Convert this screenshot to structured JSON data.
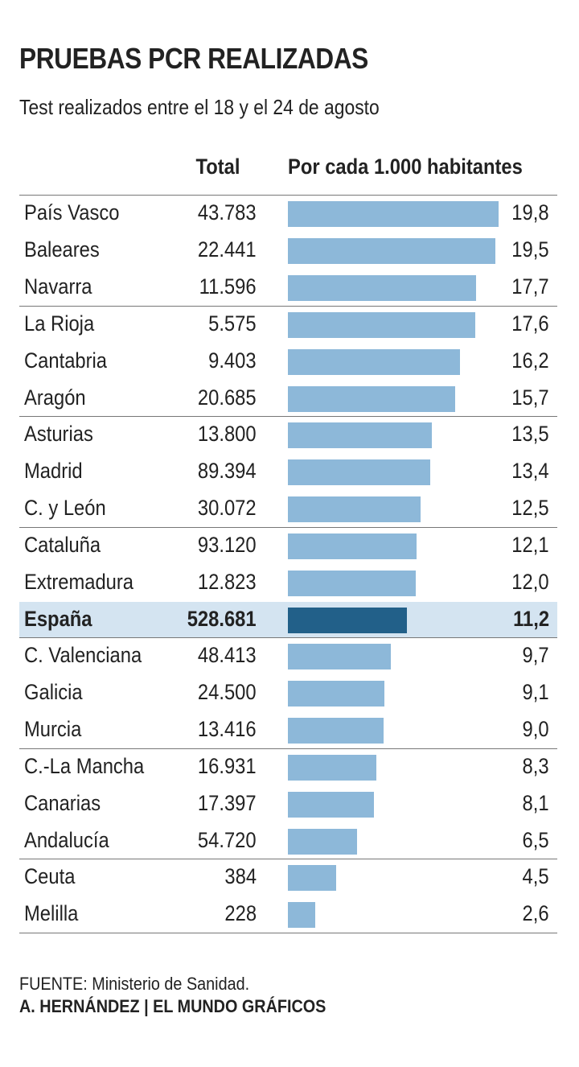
{
  "chart_data": {
    "type": "bar",
    "orientation": "horizontal",
    "title": "PRUEBAS PCR REALIZADAS",
    "subtitle": "Test realizados entre el 18 y el 24 de agosto",
    "columns": {
      "total": "Total",
      "rate": "Por cada 1.000 habitantes"
    },
    "xlim": [
      0,
      19.8
    ],
    "highlight_color": "#226089",
    "bar_color": "#8db8d9",
    "rows": [
      {
        "name": "País Vasco",
        "total": "43.783",
        "rate": 19.8,
        "rate_label": "19,8"
      },
      {
        "name": "Baleares",
        "total": "22.441",
        "rate": 19.5,
        "rate_label": "19,5"
      },
      {
        "name": "Navarra",
        "total": "11.596",
        "rate": 17.7,
        "rate_label": "17,7",
        "separator": true
      },
      {
        "name": "La Rioja",
        "total": "5.575",
        "rate": 17.6,
        "rate_label": "17,6"
      },
      {
        "name": "Cantabria",
        "total": "9.403",
        "rate": 16.2,
        "rate_label": "16,2"
      },
      {
        "name": "Aragón",
        "total": "20.685",
        "rate": 15.7,
        "rate_label": "15,7",
        "separator": true
      },
      {
        "name": "Asturias",
        "total": "13.800",
        "rate": 13.5,
        "rate_label": "13,5"
      },
      {
        "name": "Madrid",
        "total": "89.394",
        "rate": 13.4,
        "rate_label": "13,4"
      },
      {
        "name": "C. y León",
        "total": "30.072",
        "rate": 12.5,
        "rate_label": "12,5",
        "separator": true
      },
      {
        "name": "Cataluña",
        "total": "93.120",
        "rate": 12.1,
        "rate_label": "12,1"
      },
      {
        "name": "Extremadura",
        "total": "12.823",
        "rate": 12.0,
        "rate_label": "12,0"
      },
      {
        "name": "España",
        "total": "528.681",
        "rate": 11.2,
        "rate_label": "11,2",
        "highlight": true,
        "separator": true
      },
      {
        "name": "C. Valenciana",
        "total": "48.413",
        "rate": 9.7,
        "rate_label": "9,7"
      },
      {
        "name": "Galicia",
        "total": "24.500",
        "rate": 9.1,
        "rate_label": "9,1"
      },
      {
        "name": "Murcia",
        "total": "13.416",
        "rate": 9.0,
        "rate_label": "9,0",
        "separator": true
      },
      {
        "name": "C.-La Mancha",
        "total": "16.931",
        "rate": 8.3,
        "rate_label": "8,3"
      },
      {
        "name": "Canarias",
        "total": "17.397",
        "rate": 8.1,
        "rate_label": "8,1"
      },
      {
        "name": "Andalucía",
        "total": "54.720",
        "rate": 6.5,
        "rate_label": "6,5",
        "separator": true
      },
      {
        "name": "Ceuta",
        "total": "384",
        "rate": 4.5,
        "rate_label": "4,5"
      },
      {
        "name": "Melilla",
        "total": "228",
        "rate": 2.6,
        "rate_label": "2,6",
        "separator": true
      }
    ]
  },
  "footer": {
    "source": "FUENTE: Ministerio de Sanidad.",
    "credit": "A. HERNÁNDEZ | EL MUNDO GRÁFICOS"
  }
}
